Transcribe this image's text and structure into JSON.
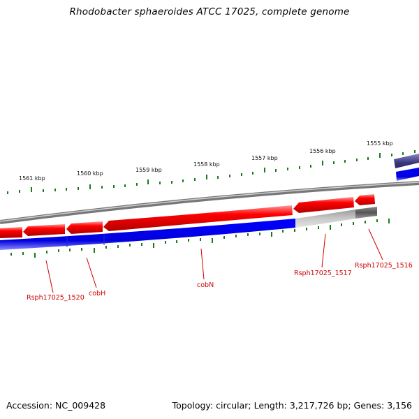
{
  "title": "Rhodobacter sphaeroides ATCC 17025, complete genome",
  "footer": {
    "accession": "Accession: NC_009428",
    "stats": "Topology: circular; Length: 3,217,726 bp; Genes: 3,156"
  },
  "ruler_labels": [
    "1561 kbp",
    "1560 kbp",
    "1559 kbp",
    "1558 kbp",
    "1557 kbp",
    "1556 kbp",
    "1555 kbp"
  ],
  "gene_labels": [
    "Rsph17025_1520",
    "cobH",
    "cobN",
    "Rsph17025_1517",
    "Rsph17025_1516"
  ],
  "colors": {
    "reverse_gene": "#ff0000",
    "forward_band": "#0000ee",
    "hypothetical_gene": "#bbbbbb",
    "backbone": "#888888",
    "ticks": "#1a7a1a",
    "label": "#cc0000"
  }
}
